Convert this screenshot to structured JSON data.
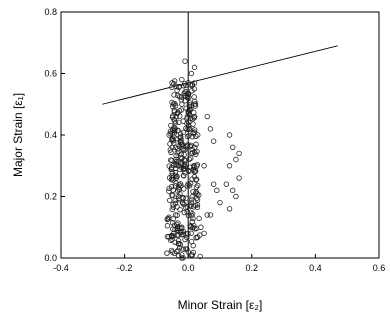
{
  "chart_data": {
    "type": "scatter",
    "title": "",
    "xlabel": "Minor Strain [ε₂]",
    "ylabel": "Major Strain [ε₁]",
    "xlim": [
      -0.4,
      0.6
    ],
    "ylim": [
      0.0,
      0.8
    ],
    "x_ticks": [
      "-0.4",
      "-0.2",
      "0.0",
      "0.2",
      "0.4",
      "0.6"
    ],
    "y_ticks": [
      "0.0",
      "0.2",
      "0.4",
      "0.6",
      "0.8"
    ],
    "grid": false,
    "reference_line_x": 0.0,
    "flc_line": {
      "x": [
        -0.27,
        0.47
      ],
      "y": [
        0.5,
        0.69
      ]
    },
    "scatter_cluster": {
      "description_x_range": [
        -0.06,
        0.03
      ],
      "y_range": [
        0.0,
        0.58
      ]
    },
    "series": [
      {
        "points": [
          [
            -0.06,
            0.4
          ],
          [
            -0.05,
            0.36
          ],
          [
            -0.04,
            0.44
          ],
          [
            -0.03,
            0.3
          ],
          [
            -0.05,
            0.26
          ],
          [
            -0.02,
            0.5
          ],
          [
            -0.01,
            0.54
          ],
          [
            0.0,
            0.57
          ],
          [
            -0.03,
            0.2
          ],
          [
            -0.04,
            0.14
          ],
          [
            -0.02,
            0.1
          ],
          [
            -0.01,
            0.06
          ],
          [
            0.0,
            0.02
          ],
          [
            0.01,
            0.01
          ],
          [
            -0.02,
            0.01
          ],
          [
            0.02,
            0.46
          ],
          [
            0.03,
            0.4
          ],
          [
            0.01,
            0.34
          ],
          [
            0.02,
            0.28
          ],
          [
            0.01,
            0.18
          ],
          [
            0.02,
            0.62
          ],
          [
            -0.01,
            0.64
          ],
          [
            0.01,
            0.6
          ],
          [
            -0.02,
            0.58
          ],
          [
            0.06,
            0.46
          ],
          [
            0.07,
            0.42
          ],
          [
            0.08,
            0.38
          ],
          [
            0.05,
            0.3
          ],
          [
            0.08,
            0.24
          ],
          [
            0.09,
            0.22
          ],
          [
            0.1,
            0.18
          ],
          [
            0.07,
            0.14
          ],
          [
            0.06,
            0.14
          ],
          [
            0.04,
            0.1
          ],
          [
            0.05,
            0.08
          ],
          [
            0.13,
            0.4
          ],
          [
            0.14,
            0.36
          ],
          [
            0.15,
            0.32
          ],
          [
            0.16,
            0.34
          ],
          [
            0.13,
            0.3
          ],
          [
            0.12,
            0.24
          ],
          [
            0.14,
            0.22
          ],
          [
            0.15,
            0.2
          ],
          [
            0.13,
            0.16
          ],
          [
            0.16,
            0.26
          ]
        ]
      }
    ]
  }
}
